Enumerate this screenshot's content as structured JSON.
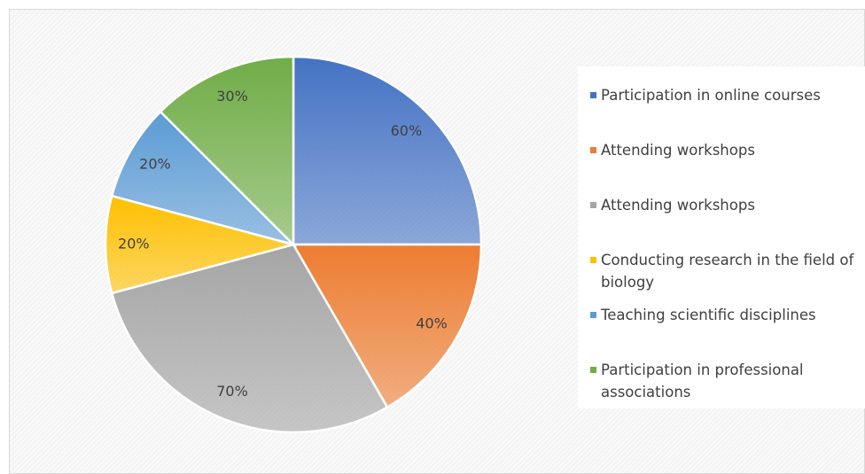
{
  "chart_data": {
    "type": "pie",
    "categories": [
      "Participation in online courses",
      "Attending workshops",
      "Attending workshops",
      "Conducting research in the field of biology",
      "Teaching scientific disciplines",
      "Participation in professional associations"
    ],
    "values": [
      60,
      40,
      70,
      20,
      20,
      30
    ],
    "value_labels": [
      "60%",
      "40%",
      "70%",
      "20%",
      "20%",
      "30%"
    ],
    "colors": [
      "#4472c4",
      "#ed7d31",
      "#a5a5a5",
      "#ffc000",
      "#5b9bd5",
      "#70ad47"
    ],
    "legend": "right"
  }
}
